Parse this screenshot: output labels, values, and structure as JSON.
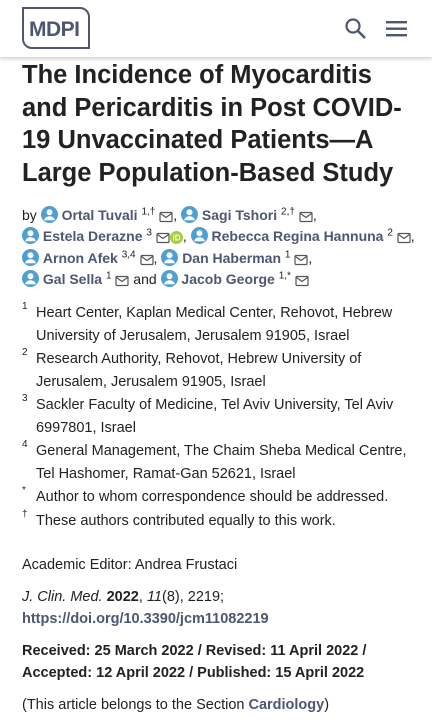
{
  "header": {
    "logo": "MDPI"
  },
  "article": {
    "title": "The Incidence of Myocarditis and Pericarditis in Post COVID-19 Unvaccinated Patients—A Large Population-Based Study",
    "by_label": "by",
    "and_label": "and",
    "authors": [
      {
        "name": "Ortal Tuvali",
        "sup": "1,†",
        "sep": ","
      },
      {
        "name": "Sagi Tshori",
        "sup": "2,†",
        "sep": ","
      },
      {
        "name": "Estela Derazne",
        "sup": "3",
        "orcid": true,
        "sep": ","
      },
      {
        "name": "Rebecca Regina Hannuna",
        "sup": "2",
        "sep": ","
      },
      {
        "name": "Arnon Afek",
        "sup": "3,4",
        "sep": ","
      },
      {
        "name": "Dan Haberman",
        "sup": "1",
        "sep": ","
      },
      {
        "name": "Gal Sella",
        "sup": "1"
      },
      {
        "name": "Jacob George",
        "sup": "1,*"
      }
    ],
    "affiliations": [
      {
        "marker": "1",
        "text": "Heart Center, Kaplan Medical Center, Rehovot, Hebrew University of Jerusalem, Jerusalem 91905, Israel"
      },
      {
        "marker": "2",
        "text": "Research Authority, Rehovot, Hebrew University of Jerusalem, Jerusalem 91905, Israel"
      },
      {
        "marker": "3",
        "text": "Sackler Faculty of Medicine, Tel Aviv University, Tel Aviv 6997801, Israel"
      },
      {
        "marker": "4",
        "text": "General Management, The Chaim Sheba Medical Centre, Tel Hashomer, Ramat-Gan 52621, Israel"
      },
      {
        "marker": "*",
        "text": "Author to whom correspondence should be addressed."
      },
      {
        "marker": "†",
        "text": "These authors contributed equally to this work."
      }
    ],
    "academic_editor": "Academic Editor: Andrea Frustaci",
    "citation": [
      {
        "text": "J. Clin. Med. ",
        "style": "italic"
      },
      {
        "text": "2022",
        "style": "bold"
      },
      {
        "text": ", "
      },
      {
        "text": "11",
        "style": "italic"
      },
      {
        "text": "(8), 2219;"
      }
    ],
    "doi": "https://doi.org/10.3390/jcm11082219",
    "dates": "Received: 25 March 2022 / Revised: 11 April 2022 / Accepted: 12 April 2022 / Published: 15 April 2022",
    "section": [
      {
        "text": "(This article belongs to the Section "
      },
      {
        "text": "Cardiology",
        "style": "link"
      },
      {
        "text": ")"
      }
    ]
  }
}
